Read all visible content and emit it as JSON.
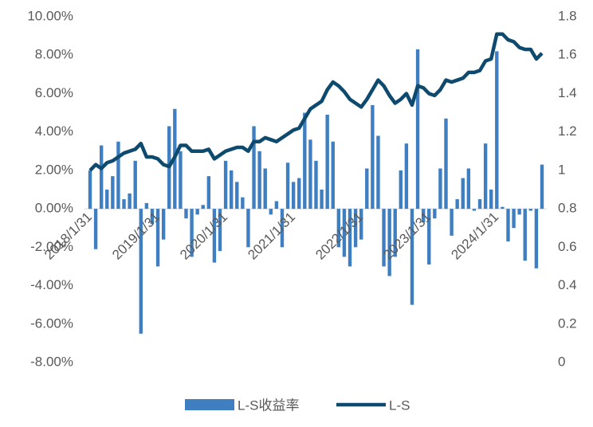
{
  "chart_data": {
    "type": "bar_line",
    "categories": [
      "2018/1/31",
      null,
      null,
      null,
      null,
      null,
      null,
      null,
      null,
      null,
      null,
      null,
      "2019/1/31",
      null,
      null,
      null,
      null,
      null,
      null,
      null,
      null,
      null,
      null,
      null,
      "2020/1/31",
      null,
      null,
      null,
      null,
      null,
      null,
      null,
      null,
      null,
      null,
      null,
      "2021/1/31",
      null,
      null,
      null,
      null,
      null,
      null,
      null,
      null,
      null,
      null,
      null,
      "2022/1/31",
      null,
      null,
      null,
      null,
      null,
      null,
      null,
      null,
      null,
      null,
      null,
      "2023/1/31",
      null,
      null,
      null,
      null,
      null,
      null,
      null,
      null,
      null,
      null,
      null,
      "2024/1/31",
      null,
      null,
      null,
      null,
      null,
      null,
      null,
      null
    ],
    "series": [
      {
        "name": "L-S收益率",
        "type": "bar",
        "color": "#3f7fc1",
        "values": [
          2.0,
          -2.1,
          3.3,
          1.0,
          1.7,
          3.5,
          0.5,
          0.8,
          2.5,
          -6.5,
          0.3,
          -0.8,
          -3.0,
          -1.6,
          4.3,
          5.2,
          3.0,
          -0.5,
          -2.5,
          -0.3,
          0.2,
          1.7,
          -2.8,
          -2.2,
          2.5,
          2.0,
          1.4,
          0.6,
          -2.0,
          4.3,
          3.0,
          2.1,
          -0.3,
          0.4,
          -2.0,
          2.4,
          1.4,
          1.6,
          5.0,
          3.6,
          2.5,
          1.0,
          4.9,
          3.5,
          -2.0,
          -2.5,
          -3.0,
          -2.0,
          -1.6,
          2.1,
          5.4,
          3.8,
          -3.0,
          -3.5,
          -2.5,
          2.0,
          3.4,
          -5.0,
          8.3,
          -0.7,
          -2.9,
          -0.5,
          2.1,
          4.7,
          -1.4,
          0.5,
          1.6,
          2.1,
          -0.1,
          0.5,
          3.4,
          1.0,
          8.2,
          0.1,
          -1.7,
          -1.0,
          -0.3,
          -2.7,
          -0.1,
          -3.1,
          2.3
        ]
      },
      {
        "name": "L-S",
        "type": "line",
        "axis": "y2",
        "color": "#0d4a6e",
        "values": [
          1.0,
          1.03,
          1.01,
          1.04,
          1.05,
          1.07,
          1.09,
          1.1,
          1.11,
          1.14,
          1.07,
          1.07,
          1.06,
          1.03,
          1.02,
          1.07,
          1.13,
          1.13,
          1.1,
          1.1,
          1.1,
          1.11,
          1.06,
          1.08,
          1.1,
          1.11,
          1.12,
          1.12,
          1.1,
          1.15,
          1.15,
          1.17,
          1.16,
          1.15,
          1.17,
          1.19,
          1.21,
          1.22,
          1.27,
          1.32,
          1.34,
          1.36,
          1.42,
          1.46,
          1.44,
          1.41,
          1.37,
          1.35,
          1.33,
          1.37,
          1.42,
          1.47,
          1.44,
          1.39,
          1.35,
          1.37,
          1.4,
          1.34,
          1.44,
          1.43,
          1.4,
          1.39,
          1.42,
          1.47,
          1.46,
          1.47,
          1.48,
          1.51,
          1.51,
          1.52,
          1.57,
          1.58,
          1.71,
          1.71,
          1.68,
          1.67,
          1.64,
          1.63,
          1.63,
          1.58,
          1.61
        ]
      }
    ],
    "ylim": [
      -8,
      10
    ],
    "yticks": [
      {
        "value": -8,
        "label": "-8.00%"
      },
      {
        "value": -6,
        "label": "-6.00%"
      },
      {
        "value": -4,
        "label": "-4.00%"
      },
      {
        "value": -2,
        "label": "-2.00%"
      },
      {
        "value": 0,
        "label": "0.00%"
      },
      {
        "value": 2,
        "label": "2.00%"
      },
      {
        "value": 4,
        "label": "4.00%"
      },
      {
        "value": 6,
        "label": "6.00%"
      },
      {
        "value": 8,
        "label": "8.00%"
      },
      {
        "value": 10,
        "label": "10.00%"
      }
    ],
    "y2lim": [
      0,
      1.8
    ],
    "y2ticks": [
      0,
      0.2,
      0.4,
      0.6,
      0.8,
      1,
      1.2,
      1.4,
      1.6,
      1.8
    ],
    "legend": "bottom"
  }
}
